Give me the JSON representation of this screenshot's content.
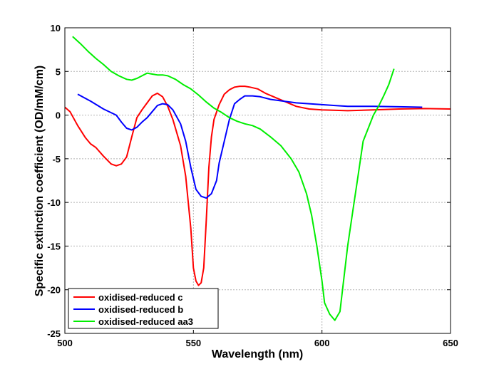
{
  "chart_data": {
    "type": "line",
    "title": "",
    "xlabel": "Wavelength (nm)",
    "ylabel": "Specific extinction coefficient (OD/mM/cm)",
    "xlim": [
      500,
      650
    ],
    "ylim": [
      -25,
      10
    ],
    "xticks": [
      500,
      550,
      600,
      650
    ],
    "yticks": [
      10,
      5,
      0,
      -5,
      -10,
      -15,
      -20,
      -25
    ],
    "grid": true,
    "legend_position": "bottom-left",
    "series": [
      {
        "name": "oxidised-reduced c",
        "color": "#ff0000",
        "points": [
          [
            500,
            0.9
          ],
          [
            502,
            0.4
          ],
          [
            505,
            -1.2
          ],
          [
            508,
            -2.6
          ],
          [
            510,
            -3.3
          ],
          [
            512,
            -3.7
          ],
          [
            515,
            -4.7
          ],
          [
            518,
            -5.6
          ],
          [
            520,
            -5.8
          ],
          [
            522,
            -5.6
          ],
          [
            524,
            -4.8
          ],
          [
            526,
            -2.5
          ],
          [
            528,
            -0.3
          ],
          [
            530,
            0.6
          ],
          [
            532,
            1.4
          ],
          [
            534,
            2.2
          ],
          [
            536,
            2.5
          ],
          [
            538,
            2.1
          ],
          [
            540,
            1.0
          ],
          [
            542,
            -0.5
          ],
          [
            545,
            -3.5
          ],
          [
            547,
            -7.0
          ],
          [
            549,
            -13.0
          ],
          [
            550,
            -17.5
          ],
          [
            551,
            -19.0
          ],
          [
            552,
            -19.5
          ],
          [
            553,
            -19.2
          ],
          [
            554,
            -17.5
          ],
          [
            555,
            -12.0
          ],
          [
            556,
            -6.0
          ],
          [
            557,
            -2.5
          ],
          [
            558,
            -0.5
          ],
          [
            560,
            1.2
          ],
          [
            562,
            2.4
          ],
          [
            564,
            2.9
          ],
          [
            566,
            3.2
          ],
          [
            568,
            3.3
          ],
          [
            570,
            3.3
          ],
          [
            572,
            3.2
          ],
          [
            575,
            3.0
          ],
          [
            578,
            2.5
          ],
          [
            582,
            2.0
          ],
          [
            586,
            1.5
          ],
          [
            590,
            1.0
          ],
          [
            595,
            0.7
          ],
          [
            600,
            0.6
          ],
          [
            610,
            0.5
          ],
          [
            620,
            0.6
          ],
          [
            630,
            0.7
          ],
          [
            640,
            0.75
          ],
          [
            650,
            0.7
          ]
        ]
      },
      {
        "name": "oxidised-reduced b",
        "color": "#0000ff",
        "points": [
          [
            505,
            2.4
          ],
          [
            510,
            1.6
          ],
          [
            515,
            0.7
          ],
          [
            520,
            0.0
          ],
          [
            522,
            -0.8
          ],
          [
            524,
            -1.5
          ],
          [
            526,
            -1.7
          ],
          [
            528,
            -1.4
          ],
          [
            530,
            -0.8
          ],
          [
            532,
            -0.3
          ],
          [
            534,
            0.4
          ],
          [
            536,
            1.1
          ],
          [
            538,
            1.3
          ],
          [
            540,
            1.2
          ],
          [
            542,
            0.6
          ],
          [
            545,
            -1.0
          ],
          [
            547,
            -3.0
          ],
          [
            549,
            -6.0
          ],
          [
            551,
            -8.5
          ],
          [
            553,
            -9.3
          ],
          [
            555,
            -9.5
          ],
          [
            557,
            -9.0
          ],
          [
            559,
            -7.5
          ],
          [
            560,
            -5.5
          ],
          [
            562,
            -3.0
          ],
          [
            564,
            -0.5
          ],
          [
            566,
            1.3
          ],
          [
            568,
            1.8
          ],
          [
            570,
            2.2
          ],
          [
            573,
            2.2
          ],
          [
            576,
            2.1
          ],
          [
            580,
            1.8
          ],
          [
            585,
            1.6
          ],
          [
            590,
            1.4
          ],
          [
            595,
            1.3
          ],
          [
            600,
            1.2
          ],
          [
            605,
            1.1
          ],
          [
            610,
            1.0
          ],
          [
            620,
            1.0
          ],
          [
            630,
            0.95
          ],
          [
            639,
            0.9
          ]
        ]
      },
      {
        "name": "oxidised-reduced aa3",
        "color": "#00ee00",
        "points": [
          [
            503,
            9.0
          ],
          [
            506,
            8.2
          ],
          [
            509,
            7.3
          ],
          [
            512,
            6.5
          ],
          [
            515,
            5.8
          ],
          [
            518,
            5.0
          ],
          [
            521,
            4.5
          ],
          [
            524,
            4.1
          ],
          [
            526,
            4.0
          ],
          [
            528,
            4.2
          ],
          [
            530,
            4.5
          ],
          [
            532,
            4.8
          ],
          [
            534,
            4.7
          ],
          [
            536,
            4.6
          ],
          [
            538,
            4.6
          ],
          [
            540,
            4.5
          ],
          [
            543,
            4.1
          ],
          [
            546,
            3.5
          ],
          [
            549,
            3.0
          ],
          [
            552,
            2.3
          ],
          [
            555,
            1.5
          ],
          [
            558,
            0.8
          ],
          [
            561,
            0.3
          ],
          [
            564,
            -0.3
          ],
          [
            567,
            -0.7
          ],
          [
            570,
            -1.0
          ],
          [
            573,
            -1.2
          ],
          [
            576,
            -1.6
          ],
          [
            580,
            -2.5
          ],
          [
            584,
            -3.5
          ],
          [
            588,
            -5.0
          ],
          [
            591,
            -6.5
          ],
          [
            594,
            -9.0
          ],
          [
            596,
            -11.5
          ],
          [
            598,
            -15.0
          ],
          [
            600,
            -19.0
          ],
          [
            601,
            -21.5
          ],
          [
            603,
            -22.8
          ],
          [
            605,
            -23.5
          ],
          [
            607,
            -22.5
          ],
          [
            608,
            -20.0
          ],
          [
            610,
            -15.0
          ],
          [
            612,
            -11.0
          ],
          [
            614,
            -7.0
          ],
          [
            616,
            -3.0
          ],
          [
            618,
            -1.5
          ],
          [
            620,
            0.0
          ],
          [
            622,
            1.0
          ],
          [
            624,
            2.2
          ],
          [
            626,
            3.5
          ],
          [
            628,
            5.3
          ]
        ]
      }
    ]
  }
}
